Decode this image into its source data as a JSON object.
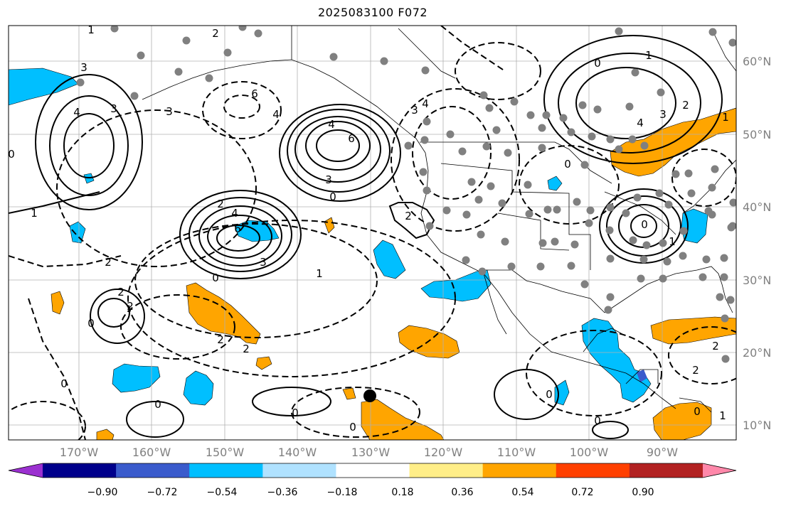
{
  "title": "2025083100 F072",
  "lat_labels": [
    "60°N",
    "50°N",
    "40°N",
    "30°N",
    "20°N",
    "10°N"
  ],
  "lon_labels": [
    "170°W",
    "160°W",
    "150°W",
    "140°W",
    "130°W",
    "120°W",
    "110°W",
    "100°W",
    "90°W"
  ],
  "colorbar": {
    "colors": [
      "#9b30d0",
      "#00008b",
      "#3a5bcc",
      "#00bfff",
      "#b0e2ff",
      "#ffffff",
      "#ffee88",
      "#ffa500",
      "#ff4000",
      "#b22222",
      "#ff88aa"
    ],
    "tick_labels": [
      "−0.90",
      "−0.72",
      "−0.54",
      "−0.36",
      "−0.18",
      "0.18",
      "0.36",
      "0.54",
      "0.72",
      "0.90"
    ]
  },
  "contour_labels": [
    "1",
    "2",
    "3",
    "4",
    "0",
    "3",
    "4",
    "3",
    "6",
    "3",
    "4",
    "4",
    "6",
    "3",
    "0",
    "2",
    "4",
    "6",
    "3",
    "0",
    "1",
    "2",
    "2",
    "2",
    "0",
    "2",
    "1",
    "0",
    "2",
    "0",
    "0",
    "0",
    "2",
    "3",
    "4",
    "1",
    "2",
    "0",
    "1",
    "0",
    "1",
    "0",
    "0",
    "2",
    "0",
    "2",
    "1",
    "0"
  ]
}
